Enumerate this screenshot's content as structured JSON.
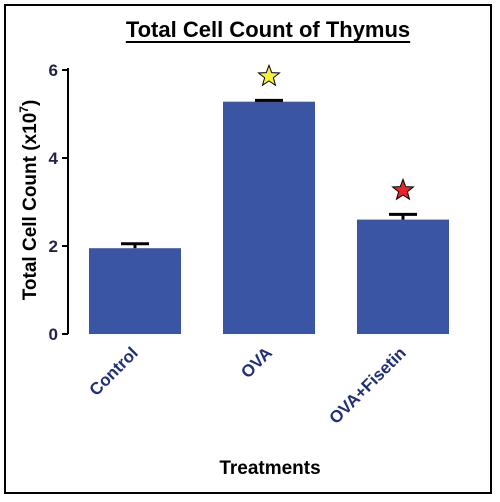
{
  "chart_data": {
    "type": "bar",
    "title": "Total Cell Count of Thymus",
    "xlabel": "Treatments",
    "ylabel_prefix": "Total Cell  Count (x10",
    "ylabel_exp": "7",
    "ylabel_suffix": ")",
    "categories": [
      "Control",
      "OVA",
      "OVA+Fisetin"
    ],
    "values": [
      1.95,
      5.28,
      2.6
    ],
    "errors": [
      0.1,
      0.03,
      0.12
    ],
    "ylim": [
      0,
      6
    ],
    "yticks": [
      0,
      2,
      4,
      6
    ],
    "markers": [
      {
        "category": "OVA",
        "symbol": "star",
        "color": "#f5f03a"
      },
      {
        "category": "OVA+Fisetin",
        "symbol": "star",
        "color": "#e8252b"
      }
    ],
    "bar_color": "#3a55a4",
    "grid": false
  }
}
